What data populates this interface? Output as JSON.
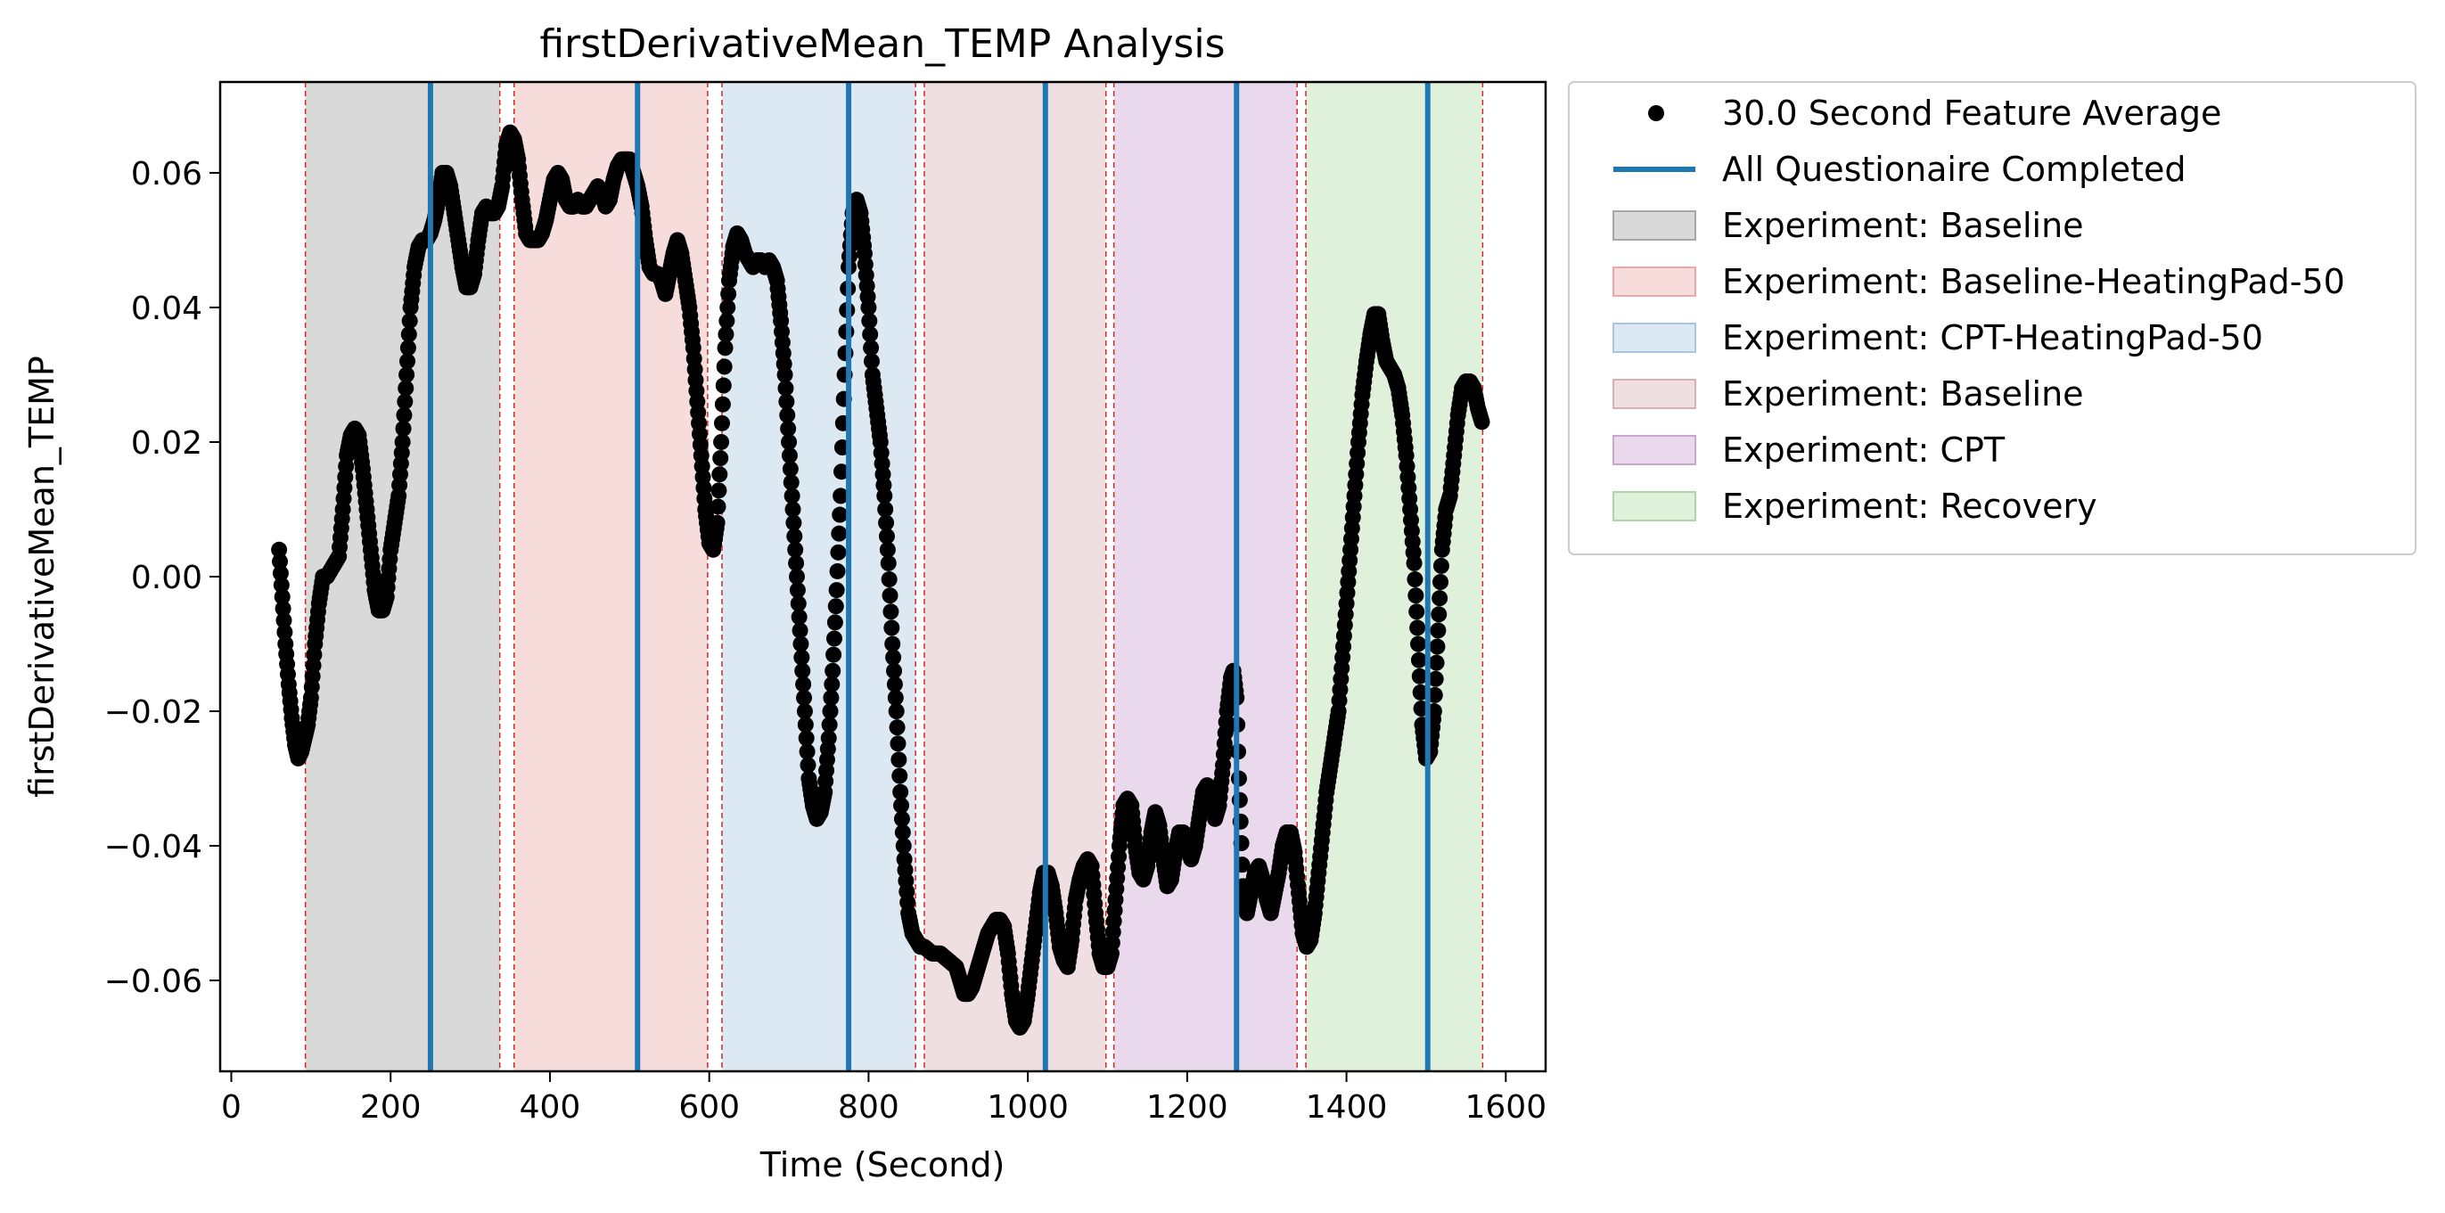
{
  "chart_data": {
    "type": "scatter",
    "title": "firstDerivativeMean_TEMP Analysis",
    "xlabel": "Time (Second)",
    "ylabel": "firstDerivativeMean_TEMP",
    "xlim": [
      -14,
      1650
    ],
    "ylim": [
      -0.0735,
      0.0735
    ],
    "x_ticks": [
      0,
      200,
      400,
      600,
      800,
      1000,
      1200,
      1400,
      1600
    ],
    "x_tick_labels": [
      "0",
      "200",
      "400",
      "600",
      "800",
      "1000",
      "1200",
      "1400",
      "1600"
    ],
    "y_ticks": [
      -0.06,
      -0.04,
      -0.02,
      0.0,
      0.02,
      0.04,
      0.06
    ],
    "y_tick_labels": [
      "−0.06",
      "−0.04",
      "−0.02",
      "0.00",
      "0.02",
      "0.04",
      "0.06"
    ],
    "grid": false,
    "legend_position": "outside-right",
    "series_legend": "30.0 Second Feature Average",
    "series_color": "#000000",
    "marker": "circle",
    "points": [
      [
        60,
        0.004
      ],
      [
        64,
        -0.003
      ],
      [
        68,
        -0.01
      ],
      [
        72,
        -0.016
      ],
      [
        76,
        -0.021
      ],
      [
        80,
        -0.025
      ],
      [
        84,
        -0.027
      ],
      [
        88,
        -0.026
      ],
      [
        92,
        -0.024
      ],
      [
        96,
        -0.022
      ],
      [
        100,
        -0.018
      ],
      [
        105,
        -0.01
      ],
      [
        110,
        -0.004
      ],
      [
        115,
        0.0
      ],
      [
        120,
        0.0
      ],
      [
        125,
        0.001
      ],
      [
        130,
        0.002
      ],
      [
        135,
        0.003
      ],
      [
        140,
        0.01
      ],
      [
        145,
        0.018
      ],
      [
        150,
        0.021
      ],
      [
        155,
        0.022
      ],
      [
        160,
        0.021
      ],
      [
        165,
        0.016
      ],
      [
        170,
        0.01
      ],
      [
        175,
        0.004
      ],
      [
        180,
        -0.002
      ],
      [
        185,
        -0.005
      ],
      [
        190,
        -0.005
      ],
      [
        195,
        -0.003
      ],
      [
        200,
        0.004
      ],
      [
        205,
        0.008
      ],
      [
        210,
        0.012
      ],
      [
        215,
        0.02
      ],
      [
        220,
        0.03
      ],
      [
        225,
        0.04
      ],
      [
        230,
        0.046
      ],
      [
        235,
        0.049
      ],
      [
        240,
        0.05
      ],
      [
        245,
        0.05
      ],
      [
        250,
        0.051
      ],
      [
        255,
        0.053
      ],
      [
        260,
        0.056
      ],
      [
        265,
        0.06
      ],
      [
        270,
        0.06
      ],
      [
        275,
        0.058
      ],
      [
        280,
        0.054
      ],
      [
        285,
        0.05
      ],
      [
        290,
        0.046
      ],
      [
        295,
        0.043
      ],
      [
        300,
        0.043
      ],
      [
        305,
        0.045
      ],
      [
        310,
        0.05
      ],
      [
        315,
        0.054
      ],
      [
        320,
        0.055
      ],
      [
        325,
        0.054
      ],
      [
        330,
        0.054
      ],
      [
        335,
        0.055
      ],
      [
        340,
        0.058
      ],
      [
        345,
        0.064
      ],
      [
        350,
        0.066
      ],
      [
        355,
        0.065
      ],
      [
        360,
        0.062
      ],
      [
        365,
        0.056
      ],
      [
        370,
        0.051
      ],
      [
        375,
        0.05
      ],
      [
        380,
        0.05
      ],
      [
        385,
        0.05
      ],
      [
        390,
        0.051
      ],
      [
        395,
        0.053
      ],
      [
        400,
        0.056
      ],
      [
        405,
        0.059
      ],
      [
        410,
        0.06
      ],
      [
        415,
        0.059
      ],
      [
        420,
        0.056
      ],
      [
        425,
        0.055
      ],
      [
        430,
        0.055
      ],
      [
        435,
        0.056
      ],
      [
        440,
        0.055
      ],
      [
        445,
        0.055
      ],
      [
        450,
        0.056
      ],
      [
        455,
        0.057
      ],
      [
        460,
        0.058
      ],
      [
        465,
        0.057
      ],
      [
        470,
        0.055
      ],
      [
        475,
        0.056
      ],
      [
        480,
        0.059
      ],
      [
        485,
        0.061
      ],
      [
        490,
        0.062
      ],
      [
        495,
        0.062
      ],
      [
        500,
        0.062
      ],
      [
        505,
        0.06
      ],
      [
        510,
        0.058
      ],
      [
        515,
        0.055
      ],
      [
        520,
        0.05
      ],
      [
        525,
        0.046
      ],
      [
        530,
        0.045
      ],
      [
        535,
        0.045
      ],
      [
        540,
        0.044
      ],
      [
        545,
        0.042
      ],
      [
        550,
        0.045
      ],
      [
        555,
        0.048
      ],
      [
        560,
        0.05
      ],
      [
        565,
        0.048
      ],
      [
        570,
        0.044
      ],
      [
        575,
        0.04
      ],
      [
        580,
        0.034
      ],
      [
        585,
        0.026
      ],
      [
        590,
        0.018
      ],
      [
        595,
        0.01
      ],
      [
        600,
        0.005
      ],
      [
        605,
        0.004
      ],
      [
        610,
        0.008
      ],
      [
        615,
        0.02
      ],
      [
        620,
        0.034
      ],
      [
        625,
        0.044
      ],
      [
        630,
        0.049
      ],
      [
        635,
        0.051
      ],
      [
        640,
        0.05
      ],
      [
        645,
        0.048
      ],
      [
        650,
        0.047
      ],
      [
        655,
        0.046
      ],
      [
        660,
        0.047
      ],
      [
        665,
        0.047
      ],
      [
        670,
        0.046
      ],
      [
        675,
        0.047
      ],
      [
        680,
        0.046
      ],
      [
        685,
        0.044
      ],
      [
        690,
        0.038
      ],
      [
        695,
        0.03
      ],
      [
        700,
        0.02
      ],
      [
        705,
        0.01
      ],
      [
        710,
        0.0
      ],
      [
        715,
        -0.01
      ],
      [
        720,
        -0.02
      ],
      [
        725,
        -0.03
      ],
      [
        730,
        -0.034
      ],
      [
        735,
        -0.036
      ],
      [
        740,
        -0.035
      ],
      [
        745,
        -0.032
      ],
      [
        750,
        -0.024
      ],
      [
        755,
        -0.014
      ],
      [
        760,
        -0.002
      ],
      [
        765,
        0.012
      ],
      [
        770,
        0.03
      ],
      [
        775,
        0.046
      ],
      [
        780,
        0.054
      ],
      [
        785,
        0.056
      ],
      [
        790,
        0.054
      ],
      [
        795,
        0.048
      ],
      [
        800,
        0.04
      ],
      [
        805,
        0.03
      ],
      [
        810,
        0.025
      ],
      [
        815,
        0.02
      ],
      [
        820,
        0.012
      ],
      [
        825,
        0.002
      ],
      [
        830,
        -0.01
      ],
      [
        835,
        -0.02
      ],
      [
        840,
        -0.032
      ],
      [
        845,
        -0.042
      ],
      [
        850,
        -0.05
      ],
      [
        855,
        -0.053
      ],
      [
        860,
        -0.054
      ],
      [
        865,
        -0.055
      ],
      [
        870,
        -0.055
      ],
      [
        880,
        -0.056
      ],
      [
        890,
        -0.056
      ],
      [
        900,
        -0.057
      ],
      [
        910,
        -0.058
      ],
      [
        915,
        -0.06
      ],
      [
        920,
        -0.062
      ],
      [
        925,
        -0.062
      ],
      [
        930,
        -0.061
      ],
      [
        935,
        -0.059
      ],
      [
        940,
        -0.057
      ],
      [
        945,
        -0.055
      ],
      [
        950,
        -0.053
      ],
      [
        955,
        -0.052
      ],
      [
        960,
        -0.051
      ],
      [
        965,
        -0.051
      ],
      [
        970,
        -0.052
      ],
      [
        975,
        -0.056
      ],
      [
        980,
        -0.062
      ],
      [
        985,
        -0.066
      ],
      [
        990,
        -0.067
      ],
      [
        995,
        -0.066
      ],
      [
        1000,
        -0.062
      ],
      [
        1005,
        -0.057
      ],
      [
        1010,
        -0.052
      ],
      [
        1015,
        -0.047
      ],
      [
        1020,
        -0.044
      ],
      [
        1025,
        -0.044
      ],
      [
        1030,
        -0.046
      ],
      [
        1035,
        -0.05
      ],
      [
        1040,
        -0.055
      ],
      [
        1045,
        -0.057
      ],
      [
        1050,
        -0.058
      ],
      [
        1055,
        -0.054
      ],
      [
        1060,
        -0.048
      ],
      [
        1065,
        -0.045
      ],
      [
        1070,
        -0.043
      ],
      [
        1075,
        -0.042
      ],
      [
        1080,
        -0.043
      ],
      [
        1085,
        -0.05
      ],
      [
        1090,
        -0.056
      ],
      [
        1095,
        -0.058
      ],
      [
        1100,
        -0.058
      ],
      [
        1105,
        -0.056
      ],
      [
        1110,
        -0.048
      ],
      [
        1115,
        -0.04
      ],
      [
        1120,
        -0.034
      ],
      [
        1125,
        -0.033
      ],
      [
        1130,
        -0.034
      ],
      [
        1135,
        -0.04
      ],
      [
        1140,
        -0.044
      ],
      [
        1145,
        -0.045
      ],
      [
        1150,
        -0.043
      ],
      [
        1155,
        -0.038
      ],
      [
        1160,
        -0.035
      ],
      [
        1165,
        -0.037
      ],
      [
        1170,
        -0.042
      ],
      [
        1175,
        -0.046
      ],
      [
        1180,
        -0.045
      ],
      [
        1185,
        -0.041
      ],
      [
        1190,
        -0.038
      ],
      [
        1195,
        -0.038
      ],
      [
        1200,
        -0.04
      ],
      [
        1205,
        -0.042
      ],
      [
        1210,
        -0.04
      ],
      [
        1215,
        -0.036
      ],
      [
        1220,
        -0.032
      ],
      [
        1225,
        -0.031
      ],
      [
        1230,
        -0.032
      ],
      [
        1235,
        -0.036
      ],
      [
        1240,
        -0.034
      ],
      [
        1245,
        -0.028
      ],
      [
        1250,
        -0.02
      ],
      [
        1255,
        -0.015
      ],
      [
        1258,
        -0.014
      ],
      [
        1262,
        -0.018
      ],
      [
        1265,
        -0.03
      ],
      [
        1270,
        -0.046
      ],
      [
        1275,
        -0.05
      ],
      [
        1280,
        -0.047
      ],
      [
        1285,
        -0.044
      ],
      [
        1290,
        -0.043
      ],
      [
        1295,
        -0.045
      ],
      [
        1300,
        -0.048
      ],
      [
        1305,
        -0.05
      ],
      [
        1310,
        -0.047
      ],
      [
        1315,
        -0.044
      ],
      [
        1320,
        -0.04
      ],
      [
        1325,
        -0.038
      ],
      [
        1330,
        -0.038
      ],
      [
        1335,
        -0.041
      ],
      [
        1340,
        -0.047
      ],
      [
        1345,
        -0.053
      ],
      [
        1350,
        -0.055
      ],
      [
        1355,
        -0.054
      ],
      [
        1360,
        -0.05
      ],
      [
        1365,
        -0.044
      ],
      [
        1370,
        -0.038
      ],
      [
        1375,
        -0.032
      ],
      [
        1380,
        -0.028
      ],
      [
        1385,
        -0.024
      ],
      [
        1390,
        -0.02
      ],
      [
        1395,
        -0.012
      ],
      [
        1400,
        -0.004
      ],
      [
        1405,
        0.004
      ],
      [
        1410,
        0.012
      ],
      [
        1415,
        0.02
      ],
      [
        1420,
        0.027
      ],
      [
        1425,
        0.032
      ],
      [
        1430,
        0.036
      ],
      [
        1435,
        0.039
      ],
      [
        1440,
        0.039
      ],
      [
        1445,
        0.035
      ],
      [
        1450,
        0.032
      ],
      [
        1455,
        0.031
      ],
      [
        1460,
        0.03
      ],
      [
        1465,
        0.028
      ],
      [
        1470,
        0.024
      ],
      [
        1475,
        0.018
      ],
      [
        1480,
        0.01
      ],
      [
        1485,
        0.002
      ],
      [
        1490,
        -0.01
      ],
      [
        1495,
        -0.022
      ],
      [
        1500,
        -0.027
      ],
      [
        1505,
        -0.026
      ],
      [
        1510,
        -0.02
      ],
      [
        1515,
        -0.008
      ],
      [
        1520,
        0.004
      ],
      [
        1525,
        0.01
      ],
      [
        1530,
        0.012
      ],
      [
        1535,
        0.018
      ],
      [
        1540,
        0.024
      ],
      [
        1545,
        0.028
      ],
      [
        1550,
        0.029
      ],
      [
        1555,
        0.029
      ],
      [
        1560,
        0.028
      ],
      [
        1565,
        0.025
      ],
      [
        1570,
        0.023
      ]
    ],
    "questionnaire_lines": {
      "legend": "All Questionaire Completed",
      "color": "#1f77b4",
      "x": [
        250,
        510,
        775,
        1022,
        1262,
        1502
      ]
    },
    "phase_boundaries": {
      "color": "#d62728",
      "x": [
        93,
        337,
        355,
        598,
        616,
        859,
        870,
        1098,
        1108,
        1338,
        1349,
        1571
      ]
    },
    "phases": [
      {
        "label": "Experiment: Baseline",
        "start": 93,
        "end": 337,
        "color": "#d9d9d9",
        "edge": "#a6a6a6"
      },
      {
        "label": "Experiment: Baseline-HeatingPad-50",
        "start": 355,
        "end": 598,
        "color": "#f7dcdc",
        "edge": "#eba7a7"
      },
      {
        "label": "Experiment: CPT-HeatingPad-50",
        "start": 616,
        "end": 859,
        "color": "#dce8f2",
        "edge": "#a9c5df"
      },
      {
        "label": "Experiment: Baseline",
        "start": 870,
        "end": 1098,
        "color": "#f0dfe0",
        "edge": "#d8afb2"
      },
      {
        "label": "Experiment: CPT",
        "start": 1108,
        "end": 1338,
        "color": "#ead9ec",
        "edge": "#caa5cf"
      },
      {
        "label": "Experiment: Recovery",
        "start": 1349,
        "end": 1571,
        "color": "#dff0db",
        "edge": "#acd6a4"
      }
    ]
  }
}
